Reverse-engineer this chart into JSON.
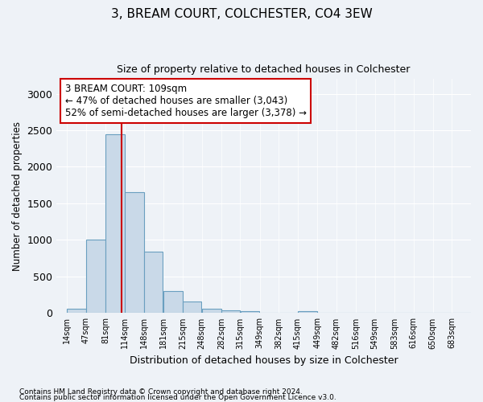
{
  "title": "3, BREAM COURT, COLCHESTER, CO4 3EW",
  "subtitle": "Size of property relative to detached houses in Colchester",
  "xlabel": "Distribution of detached houses by size in Colchester",
  "ylabel": "Number of detached properties",
  "bin_labels": [
    "14sqm",
    "47sqm",
    "81sqm",
    "114sqm",
    "148sqm",
    "181sqm",
    "215sqm",
    "248sqm",
    "282sqm",
    "315sqm",
    "349sqm",
    "382sqm",
    "415sqm",
    "449sqm",
    "482sqm",
    "516sqm",
    "549sqm",
    "583sqm",
    "616sqm",
    "650sqm",
    "683sqm"
  ],
  "bar_values": [
    55,
    1000,
    2450,
    1650,
    840,
    300,
    155,
    55,
    40,
    30,
    0,
    0,
    30,
    0,
    0,
    0,
    0,
    0,
    0,
    0,
    0
  ],
  "bar_color": "#c9d9e8",
  "bar_edgecolor": "#6a9fc0",
  "vline_x_bin_idx": 2,
  "vline_color": "#cc0000",
  "annotation_text": "3 BREAM COURT: 109sqm\n← 47% of detached houses are smaller (3,043)\n52% of semi-detached houses are larger (3,378) →",
  "annotation_box_edgecolor": "#cc0000",
  "ylim": [
    0,
    3200
  ],
  "yticks": [
    0,
    500,
    1000,
    1500,
    2000,
    2500,
    3000
  ],
  "footnote1": "Contains HM Land Registry data © Crown copyright and database right 2024.",
  "footnote2": "Contains public sector information licensed under the Open Government Licence v3.0.",
  "background_color": "#eef2f7",
  "bin_edges": [
    14,
    47,
    81,
    114,
    148,
    181,
    215,
    248,
    282,
    315,
    349,
    382,
    415,
    449,
    482,
    516,
    549,
    583,
    616,
    650,
    683,
    716
  ],
  "vline_x": 109
}
